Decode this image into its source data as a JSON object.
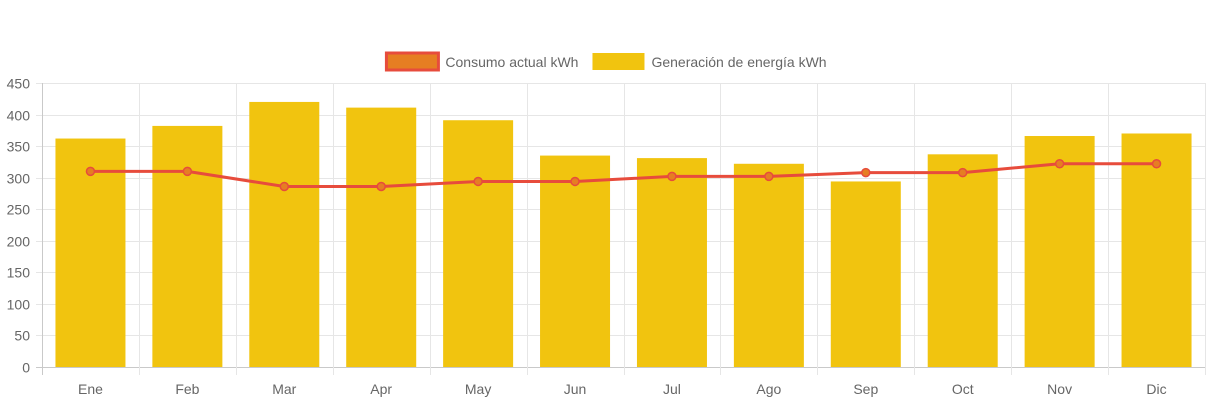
{
  "chart_data": {
    "type": "bar",
    "categories": [
      "Ene",
      "Feb",
      "Mar",
      "Apr",
      "May",
      "Jun",
      "Jul",
      "Ago",
      "Sep",
      "Oct",
      "Nov",
      "Dic"
    ],
    "series": [
      {
        "name": "Generación de energía kWh",
        "type": "bar",
        "color": "#f1c40f",
        "values": [
          362,
          382,
          420,
          411,
          391,
          335,
          331,
          322,
          294,
          337,
          366,
          370
        ]
      },
      {
        "name": "Consumo actual kWh",
        "type": "line",
        "color": "#e74c3c",
        "point_fill": "#e67e22",
        "values": [
          310,
          310,
          286,
          286,
          294,
          294,
          302,
          302,
          308,
          308,
          322,
          322
        ]
      }
    ],
    "legend": {
      "position": "top",
      "order": [
        "Consumo actual kWh",
        "Generación de energía kWh"
      ]
    },
    "ylim": [
      0,
      450
    ],
    "yticks": [
      0,
      50,
      100,
      150,
      200,
      250,
      300,
      350,
      400,
      450
    ],
    "grid": true,
    "title": "",
    "xlabel": "",
    "ylabel": ""
  }
}
